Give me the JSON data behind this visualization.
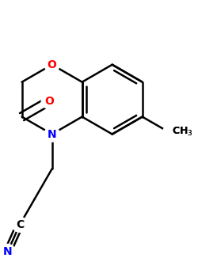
{
  "background_color": "#ffffff",
  "atom_colors": {
    "C": "#000000",
    "N": "#0000ff",
    "O": "#ff0000"
  },
  "bond_color": "#000000",
  "bond_width": 1.8,
  "figsize": [
    2.5,
    3.5
  ],
  "dpi": 100
}
